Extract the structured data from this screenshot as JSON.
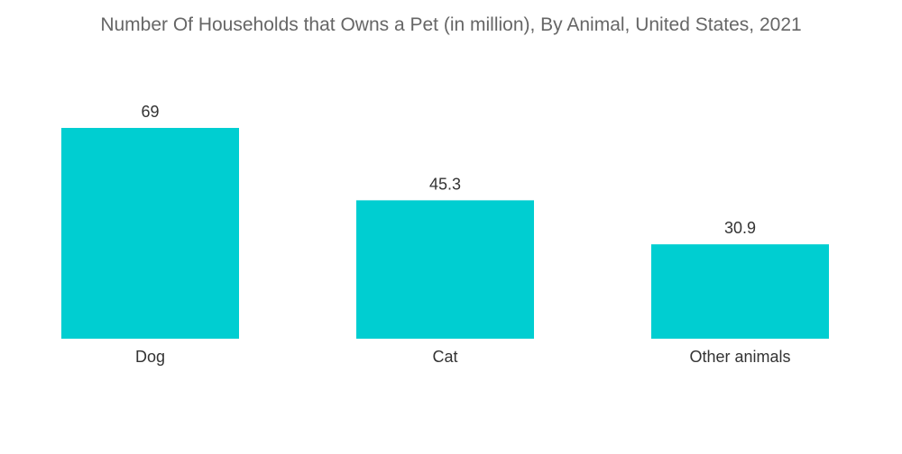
{
  "chart_data": {
    "type": "bar",
    "title": "Number Of Households that Owns a Pet (in million), By Animal, United States, 2021",
    "categories": [
      "Dog",
      "Cat",
      "Other animals"
    ],
    "values": [
      69,
      45.3,
      30.9
    ],
    "value_labels": [
      "69",
      "45.3",
      "30.9"
    ],
    "xlabel": "",
    "ylabel": "",
    "ylim": [
      0,
      69
    ],
    "grid": false,
    "legend": "none",
    "bar_color": "#00CED1"
  }
}
